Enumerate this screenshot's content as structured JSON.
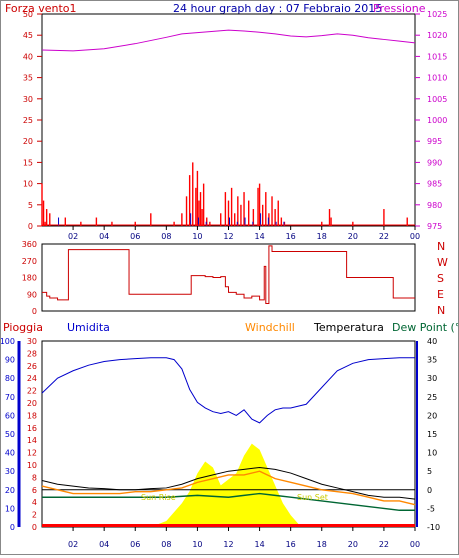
{
  "header": {
    "left_label": "Forza vento1",
    "title": "24 hour graph day : 07 Febbraio 2015",
    "right_label": "Pressione"
  },
  "lower_header": {
    "pioggia": "Pioggia",
    "umidita": "Umidita",
    "windchill": "Windchill",
    "temperatura": "Temperatura",
    "dewpoint": "Dew Point (°C"
  },
  "annotations": {
    "sun_rise": "Sun Rise",
    "sun_set": "Sun Set"
  },
  "colors": {
    "wind": "#ff0000",
    "gust": "#0000cc",
    "pressure": "#cc00cc",
    "direction": "#cc0000",
    "humidity": "#0000cc",
    "windchill": "#ff8800",
    "temperature": "#000000",
    "dewpoint": "#006633",
    "rain": "#ff0000",
    "solar": "#ffff00",
    "axis_wind": "#cc0000",
    "axis_hum": "#0000cc"
  },
  "chart_data": [
    {
      "type": "line",
      "series": [
        {
          "name": "Forza vento1",
          "x": [
            0.0,
            0.1,
            0.2,
            0.3,
            0.4,
            0.5,
            1.0,
            1.5,
            2.0,
            2.5,
            3.0,
            3.5,
            4.0,
            4.5,
            5.0,
            5.5,
            6.0,
            6.5,
            7.0,
            7.5,
            8.0,
            8.5,
            9.0,
            9.3,
            9.5,
            9.7,
            9.9,
            10.0,
            10.1,
            10.2,
            10.3,
            10.4,
            10.6,
            10.8,
            11.0,
            11.5,
            11.8,
            12.0,
            12.2,
            12.4,
            12.6,
            12.8,
            13.0,
            13.3,
            13.6,
            13.9,
            14.0,
            14.2,
            14.4,
            14.6,
            14.8,
            15.0,
            15.2,
            15.4,
            15.6,
            16.0,
            17.0,
            18.0,
            18.5,
            18.6,
            19.0,
            19.5,
            20.0,
            21.0,
            21.5,
            22.0,
            22.5,
            23.0,
            23.5,
            24.0
          ],
          "values": [
            10,
            6,
            1,
            4,
            0,
            3,
            0,
            2,
            0,
            1,
            0,
            2,
            0,
            1,
            0,
            0,
            1,
            0,
            3,
            0,
            0,
            1,
            3,
            7,
            12,
            15,
            9,
            13,
            6,
            8,
            4,
            10,
            2,
            1,
            0,
            3,
            8,
            6,
            9,
            3,
            7,
            5,
            8,
            6,
            4,
            9,
            10,
            5,
            8,
            3,
            7,
            4,
            6,
            2,
            1,
            0,
            0,
            1,
            4,
            2,
            0,
            0,
            1,
            0,
            0,
            4,
            0,
            0,
            2,
            0
          ]
        },
        {
          "name": "Raffica",
          "x": [
            0,
            1,
            2,
            3,
            4,
            5,
            6,
            7,
            8,
            9,
            9.5,
            10,
            10.5,
            11,
            11.5,
            12,
            12.5,
            13,
            13.5,
            14,
            14.5,
            15,
            15.5,
            16,
            17,
            18,
            19,
            20,
            21,
            22,
            23,
            24
          ],
          "values": [
            0,
            2,
            0,
            0,
            0,
            0,
            0,
            0,
            0,
            0,
            3,
            2,
            1,
            0,
            0,
            2,
            1,
            2,
            1,
            3,
            2,
            1,
            1,
            0,
            0,
            0,
            0,
            0,
            0,
            0,
            0,
            0
          ]
        }
      ],
      "pressure": {
        "name": "Pressione",
        "x": [
          0,
          2,
          4,
          6,
          8,
          9,
          10,
          11,
          12,
          13,
          14,
          15,
          16,
          17,
          18,
          19,
          20,
          21,
          22,
          23,
          24
        ],
        "values": [
          1016.5,
          1016.3,
          1016.8,
          1018.0,
          1019.5,
          1020.3,
          1020.6,
          1020.9,
          1021.2,
          1021.0,
          1020.7,
          1020.3,
          1019.8,
          1019.6,
          1019.9,
          1020.3,
          1020.0,
          1019.4,
          1019.0,
          1018.6,
          1018.2
        ]
      },
      "xticks": [
        "02",
        "04",
        "06",
        "08",
        "10",
        "12",
        "14",
        "16",
        "18",
        "20",
        "22",
        "00"
      ],
      "yticks_left": [
        "0",
        "5",
        "10",
        "15",
        "20",
        "25",
        "30",
        "35",
        "40",
        "45",
        "50"
      ],
      "yticks_right": [
        "975",
        "980",
        "985",
        "990",
        "995",
        "1000",
        "1005",
        "1010",
        "1015",
        "1020",
        "1025"
      ],
      "ylim": [
        0,
        50
      ],
      "y2lim": [
        975,
        1025
      ]
    },
    {
      "type": "line",
      "series": [
        {
          "name": "Direzione",
          "x": [
            0,
            0.3,
            0.5,
            1.0,
            1.5,
            1.7,
            2.0,
            3.0,
            4.0,
            5.0,
            5.5,
            5.6,
            6.0,
            7.0,
            8.0,
            9.0,
            9.5,
            9.6,
            10.0,
            10.5,
            11.0,
            11.5,
            11.8,
            12.0,
            12.5,
            13.0,
            13.5,
            14.0,
            14.3,
            14.4,
            14.6,
            14.8,
            15.0,
            15.5,
            16.0,
            17.0,
            18.0,
            19.0,
            19.5,
            19.6,
            20.0,
            21.0,
            22.0,
            22.5,
            22.6,
            23.0,
            24.0
          ],
          "values": [
            100,
            80,
            70,
            60,
            60,
            330,
            330,
            330,
            330,
            330,
            330,
            90,
            90,
            90,
            90,
            90,
            90,
            190,
            190,
            185,
            180,
            185,
            130,
            100,
            90,
            70,
            80,
            60,
            240,
            40,
            350,
            320,
            320,
            320,
            320,
            320,
            320,
            320,
            320,
            180,
            180,
            180,
            180,
            180,
            70,
            70,
            70
          ]
        }
      ],
      "yticks": [
        "0",
        "90",
        "180",
        "270",
        "360"
      ],
      "right_labels": [
        "N",
        "W",
        "S",
        "E",
        "N"
      ],
      "ylim": [
        0,
        360
      ]
    },
    {
      "type": "line",
      "humidity": {
        "name": "Umidita",
        "x": [
          0,
          0.5,
          1,
          2,
          3,
          4,
          5,
          6,
          7,
          8,
          8.5,
          9,
          9.5,
          10,
          10.5,
          11,
          11.5,
          12,
          12.5,
          13,
          13.5,
          14,
          14.5,
          15,
          15.5,
          16,
          17,
          18,
          19,
          20,
          21,
          22,
          23,
          24
        ],
        "values": [
          72,
          76,
          80,
          84,
          87,
          89,
          90,
          90.5,
          91,
          91,
          90,
          85,
          74,
          67,
          64,
          62,
          61,
          62,
          60,
          63,
          58,
          56,
          60,
          63,
          64,
          64,
          66,
          75,
          84,
          88,
          90,
          90.5,
          91,
          91
        ]
      },
      "temperature": {
        "name": "Temperatura",
        "x": [
          0,
          1,
          2,
          3,
          4,
          5,
          6,
          7,
          8,
          9,
          10,
          11,
          12,
          13,
          14,
          15,
          16,
          17,
          18,
          19,
          20,
          21,
          22,
          23,
          24
        ],
        "values": [
          2.5,
          1.5,
          1,
          0.5,
          0.3,
          0,
          0,
          0.3,
          0.5,
          1.5,
          3,
          4,
          5,
          5.5,
          6,
          5.5,
          4.5,
          3,
          1.5,
          0.5,
          -0.5,
          -1.5,
          -2,
          -2,
          -2.5
        ]
      },
      "windchill": {
        "name": "Windchill",
        "x": [
          0,
          1,
          2,
          3,
          4,
          5,
          6,
          7,
          8,
          9,
          10,
          11,
          12,
          13,
          14,
          15,
          16,
          17,
          18,
          19,
          20,
          21,
          22,
          23,
          24
        ],
        "values": [
          1,
          0,
          -1,
          -1,
          -1,
          -1,
          -0.5,
          -0.5,
          0,
          0.5,
          2,
          3,
          4,
          4,
          5,
          3,
          2,
          1,
          0,
          -0.5,
          -1,
          -2,
          -3,
          -3,
          -4
        ]
      },
      "dewpoint": {
        "name": "Dew Point (°C",
        "x": [
          0,
          2,
          4,
          6,
          8,
          10,
          12,
          13,
          14,
          15,
          16,
          17,
          18,
          19,
          20,
          21,
          22,
          23,
          24
        ],
        "values": [
          -2,
          -2,
          -2,
          -2,
          -2,
          -1.5,
          -2,
          -1.5,
          -1,
          -1.5,
          -2,
          -2.5,
          -3,
          -3.5,
          -4,
          -4.5,
          -5,
          -5.5,
          -5.5
        ]
      },
      "solar": {
        "x": [
          7,
          8,
          8.5,
          9,
          9.5,
          10,
          10.5,
          11,
          11.5,
          12,
          12.5,
          13,
          13.5,
          14,
          14.5,
          15,
          15.5,
          16,
          16.5,
          17
        ],
        "values": [
          0,
          2,
          5,
          8,
          12,
          18,
          22,
          20,
          14,
          16,
          18,
          24,
          28,
          26,
          20,
          14,
          8,
          4,
          1,
          0
        ]
      },
      "rain": {
        "name": "Pioggia",
        "values_mm": 0
      },
      "xticks": [
        "02",
        "04",
        "06",
        "08",
        "10",
        "12",
        "14",
        "16",
        "18",
        "20",
        "22",
        "00"
      ],
      "yticks_humidity": [
        "0",
        "10",
        "20",
        "30",
        "40",
        "50",
        "60",
        "70",
        "80",
        "90",
        "100"
      ],
      "yticks_rain": [
        "0",
        "2",
        "4",
        "6",
        "8",
        "10",
        "12",
        "14",
        "16",
        "18",
        "20",
        "22",
        "24",
        "26",
        "28",
        "30"
      ],
      "yticks_temp": [
        "-10",
        "-5",
        "0",
        "5",
        "10",
        "15",
        "20",
        "25",
        "30",
        "35",
        "40"
      ],
      "ylim_humidity": [
        0,
        100
      ],
      "ylim_rain": [
        0,
        30
      ],
      "ylim_temp": [
        -10,
        40
      ]
    }
  ]
}
